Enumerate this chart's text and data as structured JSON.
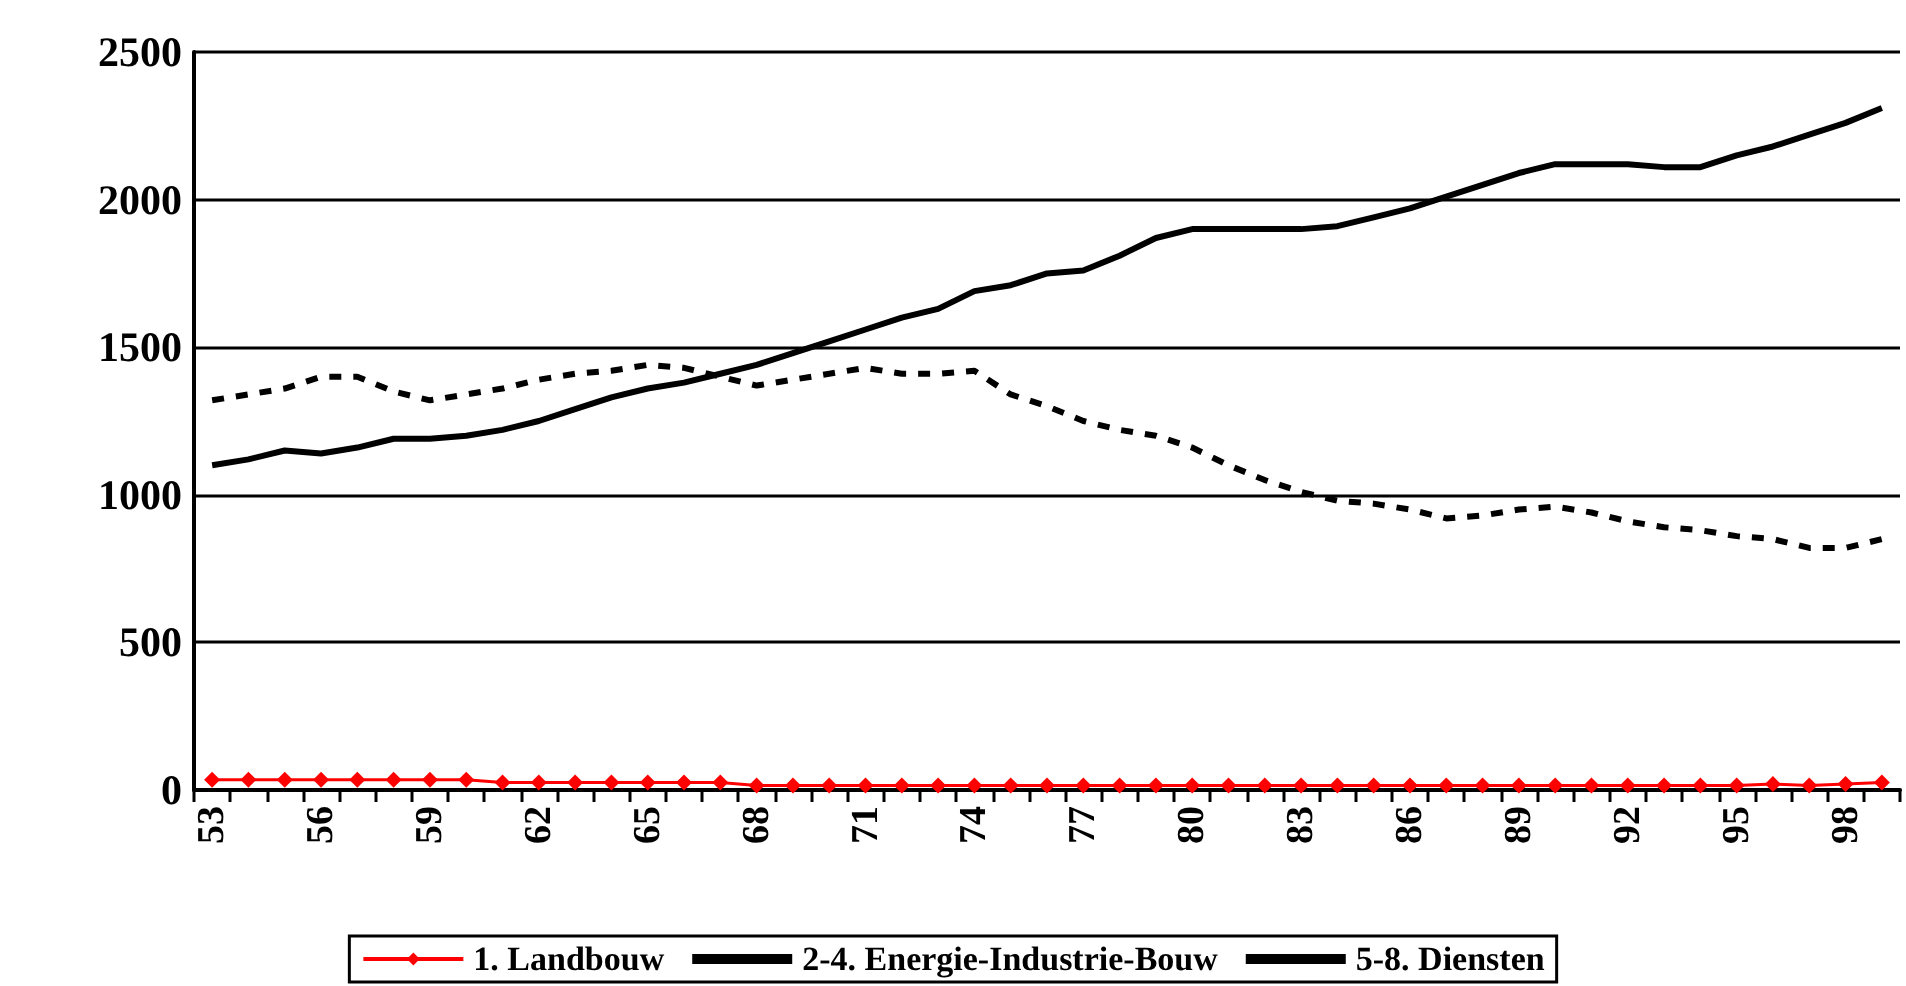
{
  "chart_data": {
    "type": "line",
    "categories": [
      "53",
      null,
      null,
      "56",
      null,
      null,
      "59",
      null,
      null,
      "62",
      null,
      null,
      "65",
      null,
      null,
      "68",
      null,
      null,
      "71",
      null,
      null,
      "74",
      null,
      null,
      "77",
      null,
      null,
      "80",
      null,
      null,
      "83",
      null,
      null,
      "86",
      null,
      null,
      "89",
      null,
      null,
      "92",
      null,
      null,
      "95",
      null,
      null,
      "98",
      null
    ],
    "series": [
      {
        "name": "1. Landbouw",
        "color": "#ff0000",
        "marker": "diamond",
        "line_style": "solid",
        "values": [
          35,
          35,
          35,
          35,
          35,
          35,
          35,
          35,
          25,
          25,
          25,
          25,
          25,
          25,
          25,
          15,
          15,
          15,
          15,
          15,
          15,
          15,
          15,
          15,
          15,
          15,
          15,
          15,
          15,
          15,
          15,
          15,
          15,
          15,
          15,
          15,
          15,
          15,
          15,
          15,
          15,
          15,
          15,
          20,
          15,
          20,
          25
        ]
      },
      {
        "name": "2-4. Energie-Industrie-Bouw",
        "color": "#000000",
        "marker": "none",
        "line_style": "dashed",
        "values": [
          1320,
          1340,
          1360,
          1400,
          1400,
          1350,
          1320,
          1340,
          1360,
          1390,
          1410,
          1420,
          1440,
          1430,
          1400,
          1370,
          1390,
          1410,
          1430,
          1410,
          1410,
          1420,
          1340,
          1300,
          1250,
          1220,
          1200,
          1160,
          1100,
          1050,
          1010,
          980,
          970,
          950,
          920,
          930,
          950,
          960,
          940,
          910,
          890,
          880,
          860,
          850,
          820,
          820,
          850
        ]
      },
      {
        "name": "5-8. Diensten",
        "color": "#000000",
        "marker": "none",
        "line_style": "solid",
        "values": [
          1100,
          1120,
          1150,
          1140,
          1160,
          1190,
          1190,
          1200,
          1220,
          1250,
          1290,
          1330,
          1360,
          1380,
          1410,
          1440,
          1480,
          1520,
          1560,
          1600,
          1630,
          1690,
          1710,
          1750,
          1760,
          1810,
          1870,
          1900,
          1900,
          1900,
          1900,
          1910,
          1940,
          1970,
          2010,
          2050,
          2090,
          2120,
          2120,
          2120,
          2110,
          2110,
          2150,
          2180,
          2220,
          2260,
          2310
        ]
      }
    ],
    "ylim": [
      0,
      2500
    ],
    "yticks": [
      0,
      500,
      1000,
      1500,
      2000,
      2500
    ],
    "grid": "y",
    "legend": "bottom"
  }
}
